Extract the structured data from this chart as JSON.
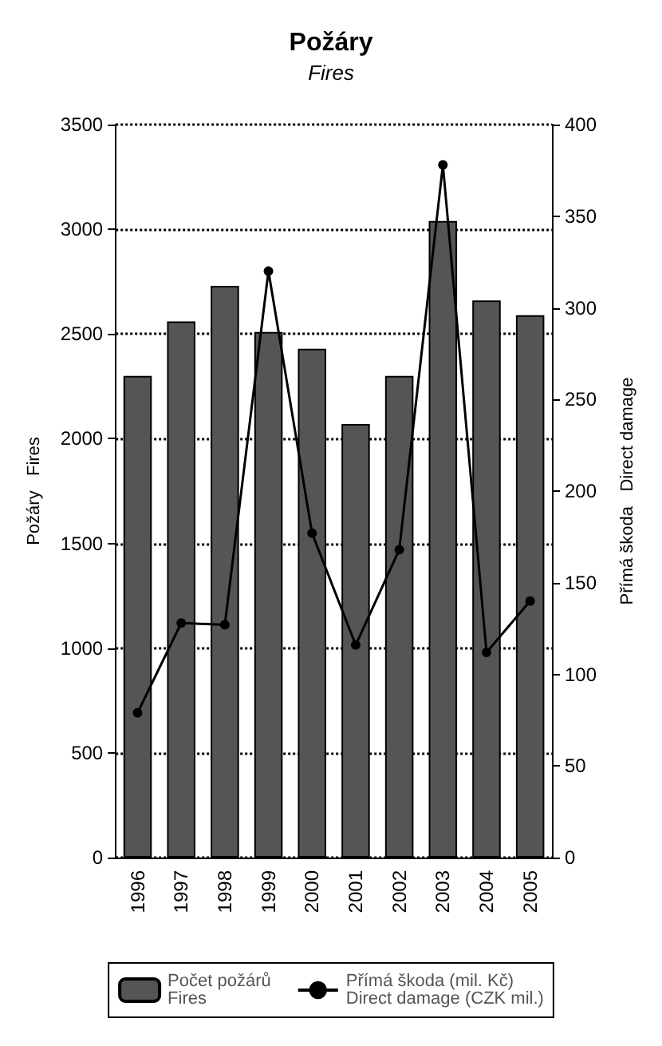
{
  "chart_data": {
    "type": "bar",
    "title": "Požáry",
    "subtitle": "Fires",
    "ylabel": "Požáry   Fires",
    "y2label": "Přímá škoda   Direct damage",
    "categories": [
      "1996",
      "1997",
      "1998",
      "1999",
      "2000",
      "2001",
      "2002",
      "2003",
      "2004",
      "2005"
    ],
    "series": [
      {
        "name": "Počet požárů\nFires",
        "color": "#555555",
        "values": [
          2300,
          2560,
          2730,
          2510,
          2430,
          2070,
          2300,
          3040,
          2660,
          2590
        ]
      },
      {
        "name": "Přímá škoda (mil. Kč)\nDirect damage (CZK mil.)",
        "type": "line",
        "axis": "y2",
        "color": "#000000",
        "values": [
          79,
          128,
          127,
          320,
          177,
          116,
          168,
          378,
          112,
          140
        ]
      }
    ],
    "ylim": [
      0,
      3500
    ],
    "yticks": [
      0,
      500,
      1000,
      1500,
      2000,
      2500,
      3000,
      3500
    ],
    "y2lim": [
      0,
      400
    ],
    "y2ticks": [
      0,
      50,
      100,
      150,
      200,
      250,
      300,
      350,
      400
    ],
    "grid": "y",
    "legend": "bottom",
    "marker": "circle",
    "line_style": "solid"
  }
}
